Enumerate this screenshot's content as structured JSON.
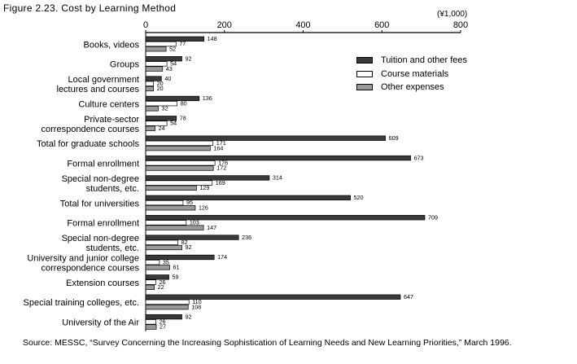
{
  "figure_title": "Figure 2.23. Cost by Learning Method",
  "unit": "(¥1,000)",
  "source": "Source: MESSC, “Survey Concerning the Increasing Sophistication of Learning Needs and New Learning Priorities,” March 1996.",
  "legend": [
    {
      "label": "Tuition and other fees",
      "color": "#3a3a3a"
    },
    {
      "label": "Course materials",
      "color": "#ffffff"
    },
    {
      "label": "Other expenses",
      "color": "#9a9a9a"
    }
  ],
  "chart_data": {
    "type": "bar",
    "orientation": "horizontal",
    "xlim": [
      0,
      800
    ],
    "ticks": [
      0,
      200,
      400,
      600,
      800
    ],
    "categories": [
      [
        "Books, videos"
      ],
      [
        "Groups"
      ],
      [
        "Local government",
        "lectures and courses"
      ],
      [
        "Culture centers"
      ],
      [
        "Private-sector",
        "correspondence courses"
      ],
      [
        "Total for graduate schools"
      ],
      [
        "Formal enrollment"
      ],
      [
        "Special non-degree",
        "students, etc."
      ],
      [
        "Total for universities"
      ],
      [
        "Formal enrollment"
      ],
      [
        "Special non-degree",
        "students, etc."
      ],
      [
        "University and junior college",
        "correspondence courses"
      ],
      [
        "Extension courses"
      ],
      [
        "Special training colleges, etc."
      ],
      [
        "University of the Air"
      ]
    ],
    "series": [
      {
        "name": "Tuition and other fees",
        "color": "#3a3a3a",
        "values": [
          148,
          92,
          40,
          136,
          78,
          609,
          673,
          314,
          520,
          709,
          236,
          174,
          59,
          647,
          92
        ]
      },
      {
        "name": "Course materials",
        "color": "#ffffff",
        "values": [
          77,
          54,
          20,
          80,
          54,
          171,
          176,
          169,
          95,
          103,
          82,
          35,
          26,
          110,
          26
        ]
      },
      {
        "name": "Other expenses",
        "color": "#9a9a9a",
        "values": [
          52,
          43,
          20,
          32,
          24,
          164,
          172,
          129,
          126,
          147,
          92,
          61,
          22,
          108,
          27
        ]
      }
    ]
  }
}
